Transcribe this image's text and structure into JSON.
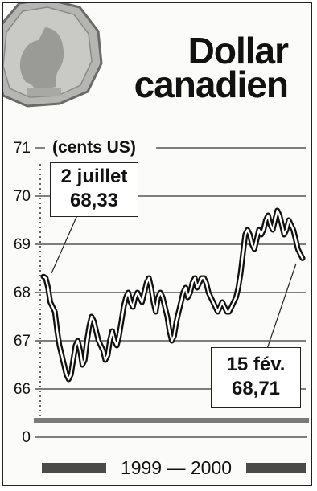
{
  "title_lines": [
    "Dollar",
    "canadien"
  ],
  "colors": {
    "line": "#111111",
    "grid": "#333333",
    "background": "#fbfbf9"
  },
  "footer": {
    "period": "1999 — 2000"
  },
  "callouts": {
    "start": {
      "date": "2 juillet",
      "value": "68,33"
    },
    "end": {
      "date": "15 fév.",
      "value": "68,71"
    }
  },
  "chart_data": {
    "type": "line",
    "ylabel": "(cents US)",
    "yticks": [
      0,
      66,
      67,
      68,
      69,
      70,
      71
    ],
    "ylim": [
      66,
      71
    ],
    "axis_break": true,
    "grid": true,
    "x_period": "1999 — 2000",
    "series": [
      {
        "values": [
          68.33,
          68.3,
          68.1,
          67.8,
          67.7,
          67.6,
          67.2,
          66.9,
          66.7,
          66.5,
          66.3,
          66.2,
          66.3,
          66.6,
          66.9,
          67.0,
          66.8,
          66.5,
          66.6,
          67.0,
          67.3,
          67.5,
          67.4,
          67.2,
          67.0,
          66.9,
          66.8,
          66.6,
          66.7,
          67.0,
          67.2,
          67.0,
          66.9,
          67.1,
          67.4,
          67.7,
          67.9,
          68.0,
          67.8,
          67.7,
          67.9,
          68.0,
          67.9,
          67.8,
          68.0,
          68.2,
          68.3,
          68.1,
          67.8,
          67.6,
          67.9,
          68.0,
          67.9,
          67.7,
          67.5,
          67.2,
          67.0,
          67.1,
          67.4,
          67.6,
          67.8,
          68.0,
          68.1,
          67.9,
          68.0,
          68.2,
          68.3,
          68.1,
          68.2,
          68.3,
          68.3,
          68.2,
          68.0,
          67.9,
          67.8,
          67.7,
          67.6,
          67.7,
          67.8,
          67.7,
          67.6,
          67.6,
          67.7,
          67.8,
          67.9,
          68.1,
          68.4,
          68.8,
          69.2,
          69.3,
          69.2,
          69.0,
          68.9,
          69.1,
          69.3,
          69.2,
          69.3,
          69.5,
          69.6,
          69.4,
          69.3,
          69.5,
          69.7,
          69.6,
          69.4,
          69.2,
          69.3,
          69.5,
          69.4,
          69.3,
          69.1,
          68.9,
          68.8,
          68.71
        ]
      }
    ]
  }
}
